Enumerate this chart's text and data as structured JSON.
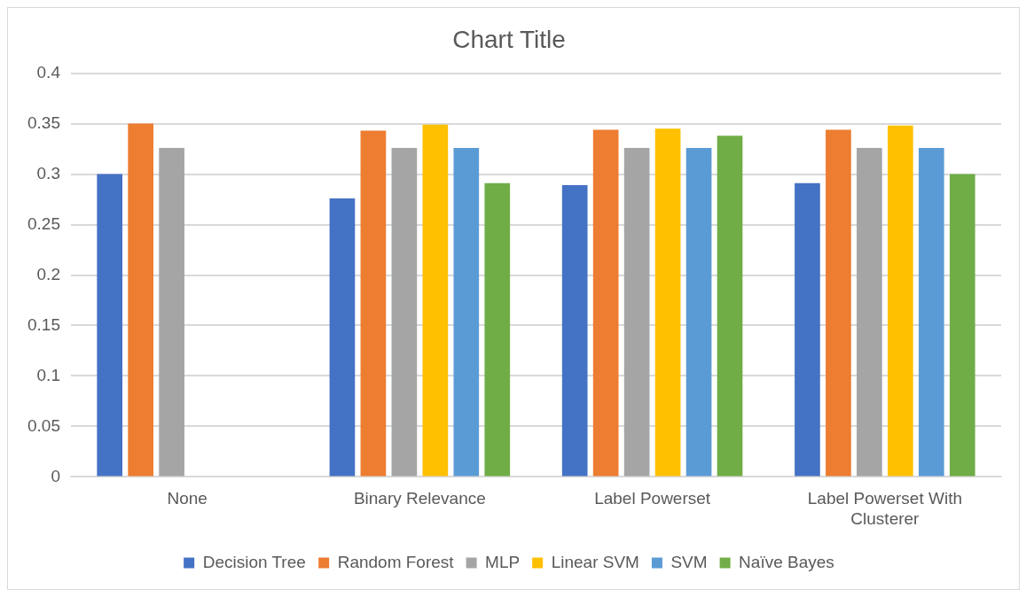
{
  "chart_data": {
    "type": "bar",
    "title": "Chart Title",
    "categories": [
      "None",
      "Binary Relevance",
      "Label Powerset",
      "Label Powerset With Clusterer"
    ],
    "series": [
      {
        "name": "Decision Tree",
        "color": "#4472c4",
        "values": [
          0.3,
          0.276,
          0.289,
          0.291
        ]
      },
      {
        "name": "Random Forest",
        "color": "#ed7d31",
        "values": [
          0.35,
          0.343,
          0.344,
          0.344
        ]
      },
      {
        "name": "MLP",
        "color": "#a5a5a5",
        "values": [
          0.326,
          0.326,
          0.326,
          0.326
        ]
      },
      {
        "name": "Linear SVM",
        "color": "#ffc000",
        "values": [
          null,
          0.349,
          0.345,
          0.348
        ]
      },
      {
        "name": "SVM",
        "color": "#5b9bd5",
        "values": [
          null,
          0.326,
          0.326,
          0.326
        ]
      },
      {
        "name": "Naïve Bayes",
        "color": "#70ad47",
        "values": [
          null,
          0.291,
          0.338,
          0.3
        ]
      }
    ],
    "ylim": [
      0,
      0.4
    ],
    "yticks": [
      0,
      0.05,
      0.1,
      0.15,
      0.2,
      0.25,
      0.3,
      0.35,
      0.4
    ],
    "grid": "y",
    "legend": "bottom"
  }
}
